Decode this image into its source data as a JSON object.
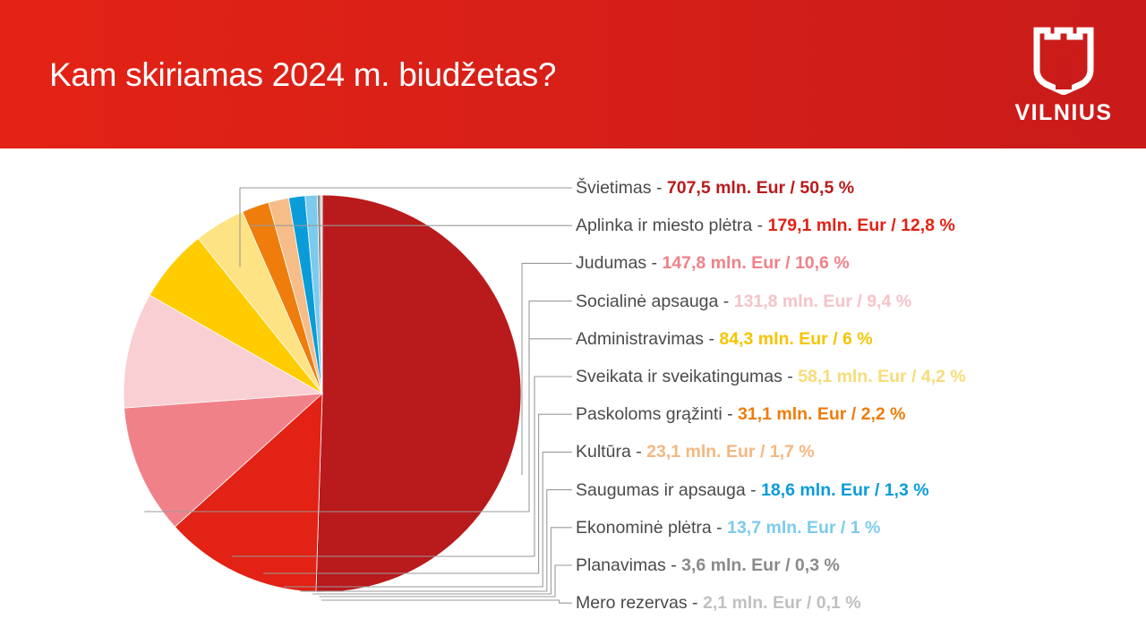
{
  "header": {
    "title": "Kam skiriamas 2024 m. biudžetas?",
    "logo_text": "VILNIUS",
    "logo_icon": "castle-tower-icon",
    "background_color": "#d71f18"
  },
  "chart_data": {
    "type": "pie",
    "title": "Kam skiriamas 2024 m. biudžetas?",
    "unit": "mln. Eur",
    "slices": [
      {
        "label": "Švietimas",
        "value": 707.5,
        "percent": 50.5,
        "value_text": "707,5 mln. Eur / 50,5 %",
        "color": "#b91a1c",
        "text_color": "#b91a1c"
      },
      {
        "label": "Aplinka ir miesto plėtra",
        "value": 179.1,
        "percent": 12.8,
        "value_text": "179,1 mln. Eur / 12,8 %",
        "color": "#e12215",
        "text_color": "#e12215"
      },
      {
        "label": "Judumas",
        "value": 147.8,
        "percent": 10.6,
        "value_text": "147,8 mln. Eur / 10,6 %",
        "color": "#f18189",
        "text_color": "#f18189"
      },
      {
        "label": "Socialinė apsauga",
        "value": 131.8,
        "percent": 9.4,
        "value_text": "131,8 mln. Eur / 9,4 %",
        "color": "#f9cfd3",
        "text_color": "#f5c3c8"
      },
      {
        "label": "Administravimas",
        "value": 84.3,
        "percent": 6,
        "value_text": "84,3 mln. Eur / 6 %",
        "color": "#ffcc00",
        "text_color": "#f5c400"
      },
      {
        "label": "Sveikata ir sveikatingumas",
        "value": 58.1,
        "percent": 4.2,
        "value_text": "58,1 mln. Eur / 4,2 %",
        "color": "#fde383",
        "text_color": "#f7dc78"
      },
      {
        "label": "Paskoloms grąžinti",
        "value": 31.1,
        "percent": 2.2,
        "value_text": "31,1 mln. Eur / 2,2 %",
        "color": "#ee7d0c",
        "text_color": "#ee7d0c"
      },
      {
        "label": "Kultūra",
        "value": 23.1,
        "percent": 1.7,
        "value_text": "23,1 mln. Eur / 1,7 %",
        "color": "#f6bd88",
        "text_color": "#f4b77f"
      },
      {
        "label": "Saugumas ir apsauga",
        "value": 18.6,
        "percent": 1.3,
        "value_text": "18,6 mln. Eur / 1,3 %",
        "color": "#0a9cd8",
        "text_color": "#0a9cd8"
      },
      {
        "label": "Ekonominė plėtra",
        "value": 13.7,
        "percent": 1,
        "value_text": "13,7 mln. Eur / 1 %",
        "color": "#7ccbee",
        "text_color": "#7ccbee"
      },
      {
        "label": "Planavimas",
        "value": 3.6,
        "percent": 0.3,
        "value_text": "3,6 mln. Eur / 0,3 %",
        "color": "#8a8a8a",
        "text_color": "#8a8a8a"
      },
      {
        "label": "Mero rezervas",
        "value": 2.1,
        "percent": 0.1,
        "value_text": "2,1 mln. Eur / 0,1 %",
        "color": "#c8c8c8",
        "text_color": "#c0c0c0"
      }
    ],
    "start_angle": "12 o'clock",
    "direction": "clockwise",
    "legend_placement": "right",
    "leader_line_color": "#9a9a9a"
  }
}
